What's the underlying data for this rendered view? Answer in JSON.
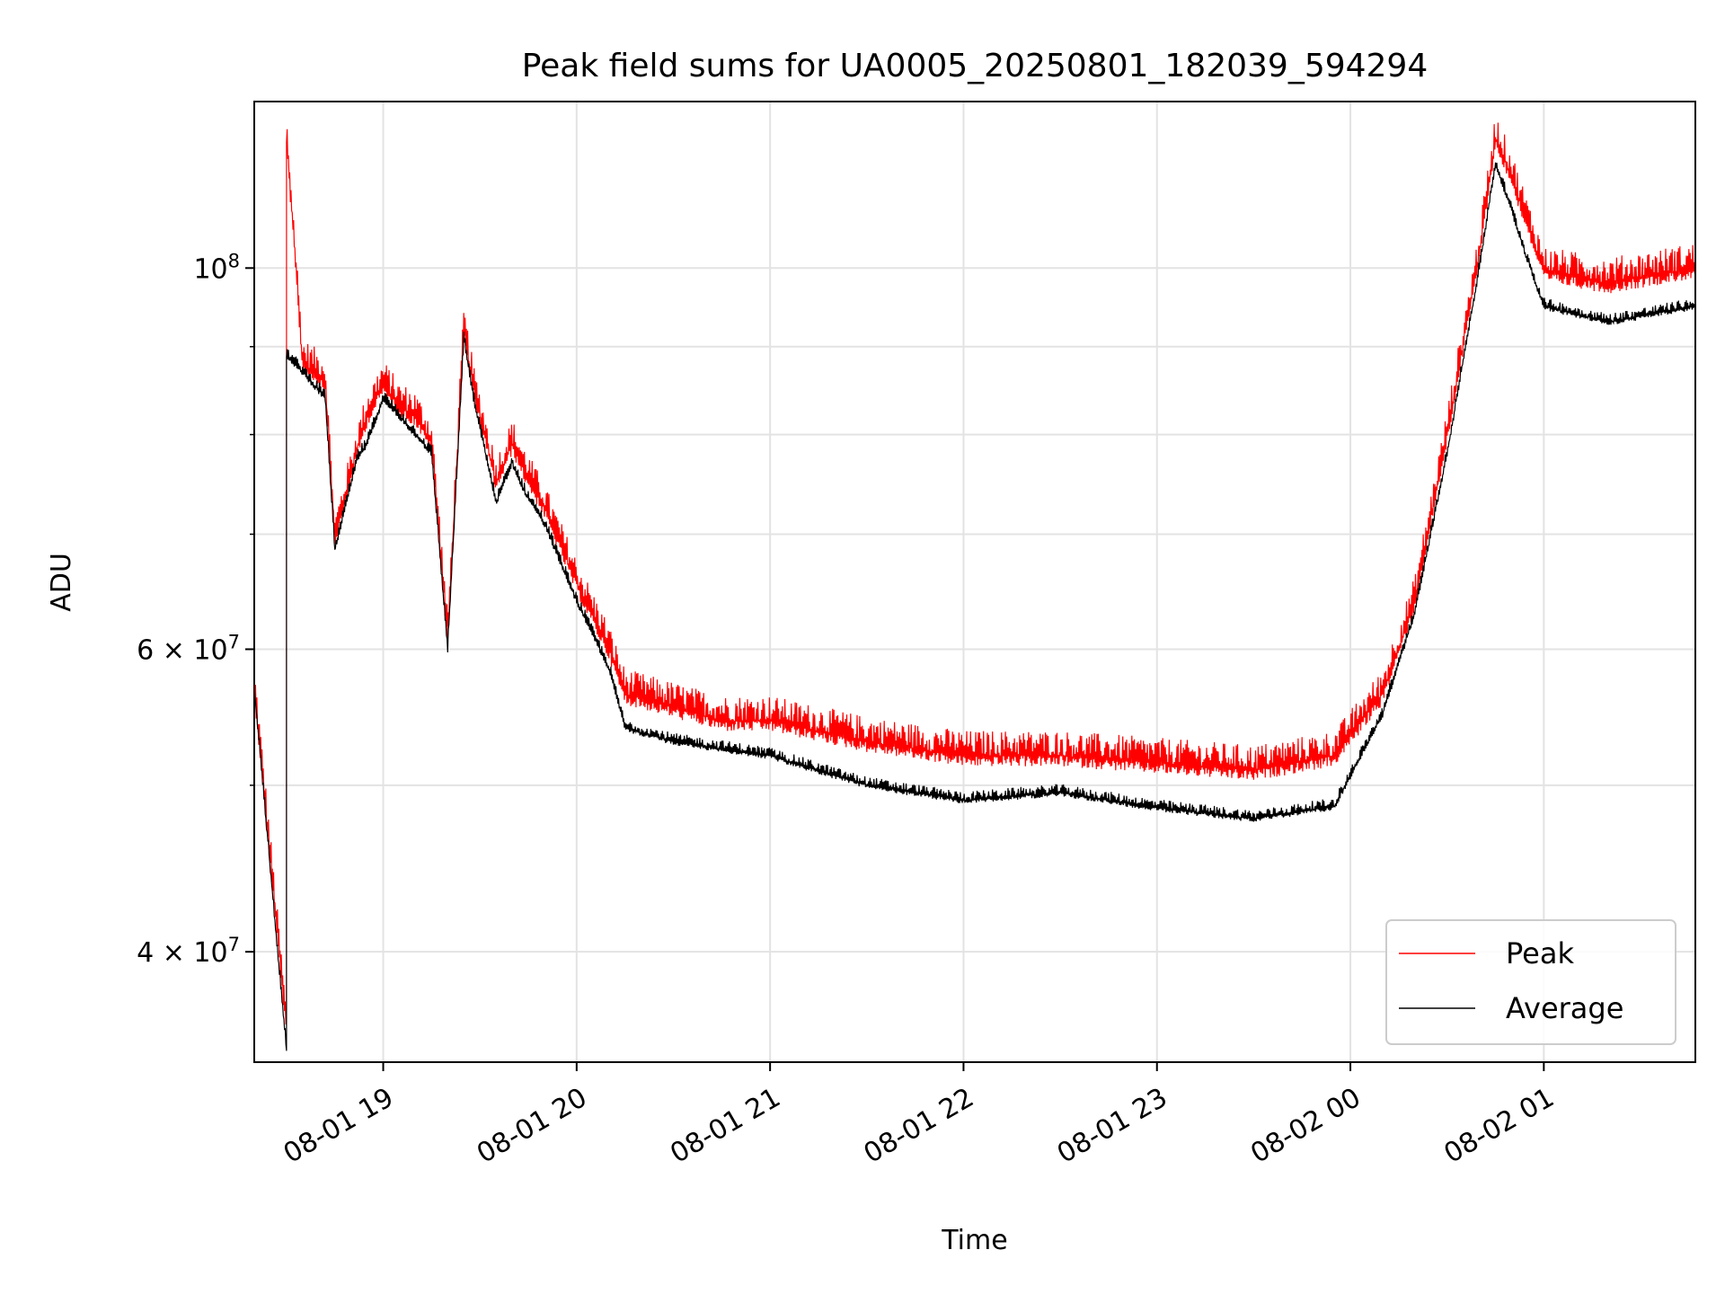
{
  "chart_data": {
    "type": "line",
    "title": "Peak field sums for UA0005_20250801_182039_594294",
    "xlabel": "Time",
    "ylabel": "ADU",
    "y_scale": "log",
    "grid": true,
    "legend_position": "lower right",
    "xlim": [
      "2025-08-01 18:20",
      "2025-08-02 01:47"
    ],
    "ylim": [
      34500000,
      125000000
    ],
    "x_ticks": [
      {
        "value": "2025-08-01 19:00",
        "label": "08-01 19"
      },
      {
        "value": "2025-08-01 20:00",
        "label": "08-01 20"
      },
      {
        "value": "2025-08-01 21:00",
        "label": "08-01 21"
      },
      {
        "value": "2025-08-01 22:00",
        "label": "08-01 22"
      },
      {
        "value": "2025-08-01 23:00",
        "label": "08-01 23"
      },
      {
        "value": "2025-08-02 00:00",
        "label": "08-02 00"
      },
      {
        "value": "2025-08-02 01:00",
        "label": "08-02 01"
      }
    ],
    "y_ticks": [
      {
        "value": 100000000,
        "base": "10",
        "exp": "8"
      },
      {
        "value": 60000000,
        "base": "6 × 10",
        "exp": "7"
      },
      {
        "value": 40000000,
        "base": "4 × 10",
        "exp": "7"
      }
    ],
    "y_minor_ticks": [
      50000000,
      70000000,
      80000000,
      90000000
    ],
    "series": [
      {
        "name": "Peak",
        "color": "#ff0000",
        "x": [
          "2025-08-01 18:20",
          "2025-08-01 18:30",
          "2025-08-01 18:30",
          "2025-08-01 18:35",
          "2025-08-01 18:42",
          "2025-08-01 18:45",
          "2025-08-01 18:52",
          "2025-08-01 18:55",
          "2025-08-01 19:00",
          "2025-08-01 19:05",
          "2025-08-01 19:10",
          "2025-08-01 19:15",
          "2025-08-01 19:20",
          "2025-08-01 19:25",
          "2025-08-01 19:28",
          "2025-08-01 19:35",
          "2025-08-01 19:40",
          "2025-08-01 19:44",
          "2025-08-01 19:50",
          "2025-08-01 20:00",
          "2025-08-01 20:10",
          "2025-08-01 20:15",
          "2025-08-01 20:30",
          "2025-08-01 20:45",
          "2025-08-01 21:00",
          "2025-08-01 21:30",
          "2025-08-01 22:00",
          "2025-08-01 22:30",
          "2025-08-01 23:00",
          "2025-08-01 23:30",
          "2025-08-01 23:55",
          "2025-08-02 00:10",
          "2025-08-02 00:20",
          "2025-08-02 00:30",
          "2025-08-02 00:40",
          "2025-08-02 00:45",
          "2025-08-02 00:50",
          "2025-08-02 00:55",
          "2025-08-02 01:00",
          "2025-08-02 01:20",
          "2025-08-02 01:47"
        ],
        "y": [
          57000000,
          36000000,
          119000000,
          88000000,
          86000000,
          69500000,
          78500000,
          82000000,
          85500000,
          83000000,
          82000000,
          79000000,
          61000000,
          92000000,
          85000000,
          75000000,
          79000000,
          76000000,
          72500000,
          65500000,
          60000000,
          56500000,
          55500000,
          54500000,
          54500000,
          53000000,
          52000000,
          52000000,
          51500000,
          51000000,
          52000000,
          56500000,
          64000000,
          80000000,
          102000000,
          119000000,
          113000000,
          106000000,
          99500000,
          98000000,
          100000000
        ]
      },
      {
        "name": "Average",
        "color": "#000000",
        "x": [
          "2025-08-01 18:20",
          "2025-08-01 18:30",
          "2025-08-01 18:30",
          "2025-08-01 18:35",
          "2025-08-01 18:42",
          "2025-08-01 18:45",
          "2025-08-01 18:52",
          "2025-08-01 18:55",
          "2025-08-01 19:00",
          "2025-08-01 19:05",
          "2025-08-01 19:10",
          "2025-08-01 19:15",
          "2025-08-01 19:20",
          "2025-08-01 19:25",
          "2025-08-01 19:28",
          "2025-08-01 19:35",
          "2025-08-01 19:40",
          "2025-08-01 19:44",
          "2025-08-01 19:50",
          "2025-08-01 20:00",
          "2025-08-01 20:10",
          "2025-08-01 20:15",
          "2025-08-01 20:30",
          "2025-08-01 20:45",
          "2025-08-01 21:00",
          "2025-08-01 21:30",
          "2025-08-01 22:00",
          "2025-08-01 22:30",
          "2025-08-01 23:00",
          "2025-08-01 23:30",
          "2025-08-01 23:55",
          "2025-08-02 00:10",
          "2025-08-02 00:20",
          "2025-08-02 00:30",
          "2025-08-02 00:40",
          "2025-08-02 00:45",
          "2025-08-02 00:50",
          "2025-08-02 00:55",
          "2025-08-02 01:00",
          "2025-08-02 01:20",
          "2025-08-02 01:47"
        ],
        "y": [
          57000000,
          35000000,
          89000000,
          87000000,
          84000000,
          68500000,
          77500000,
          79000000,
          84000000,
          82000000,
          80000000,
          78000000,
          60000000,
          91000000,
          84000000,
          73000000,
          77000000,
          74000000,
          71000000,
          64000000,
          58500000,
          54000000,
          53000000,
          52500000,
          52000000,
          50000000,
          49000000,
          49500000,
          48500000,
          47800000,
          48600000,
          55000000,
          63000000,
          78000000,
          100000000,
          115000000,
          108000000,
          101000000,
          95000000,
          93000000,
          95000000
        ]
      }
    ]
  }
}
